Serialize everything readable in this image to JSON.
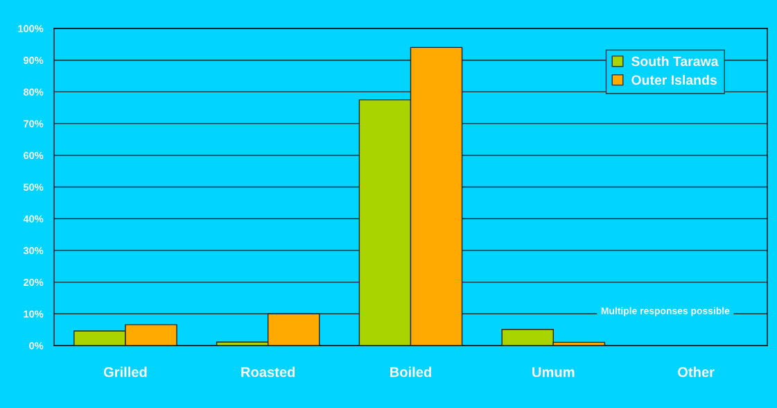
{
  "chart_data": {
    "type": "bar",
    "categories": [
      "Grilled",
      "Roasted",
      "Boiled",
      "Umum",
      "Other"
    ],
    "series": [
      {
        "name": "South Tarawa",
        "color": "#aad400",
        "values": [
          4.6,
          1.1,
          77.5,
          5.1,
          null
        ]
      },
      {
        "name": "Outer Islands",
        "color": "#ffaa00",
        "values": [
          6.6,
          10,
          94,
          1.0,
          null
        ]
      }
    ],
    "ylim": [
      0,
      100
    ],
    "yticks": [
      {
        "value": 0,
        "label": "0%"
      },
      {
        "value": 10,
        "label": "10%"
      },
      {
        "value": 20,
        "label": "20%"
      },
      {
        "value": 30,
        "label": "30%"
      },
      {
        "value": 40,
        "label": "40%"
      },
      {
        "value": 50,
        "label": "50%"
      },
      {
        "value": 60,
        "label": "60%"
      },
      {
        "value": 70,
        "label": "70%"
      },
      {
        "value": 80,
        "label": "80%"
      },
      {
        "value": 90,
        "label": "90%"
      },
      {
        "value": 100,
        "label": "100%"
      }
    ],
    "grid": "y",
    "legend": "top right",
    "annotations": [
      "Multiple responses possible"
    ]
  }
}
